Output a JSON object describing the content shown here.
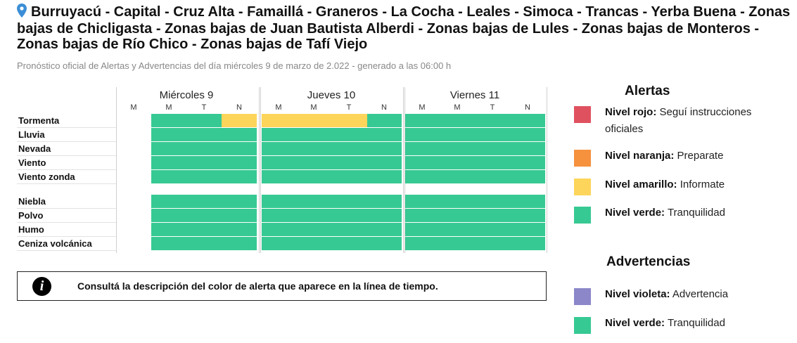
{
  "header": {
    "title": "Burruyacú - Capital - Cruz Alta - Famaillá - Graneros - La Cocha - Leales - Simoca - Trancas - Yerba Buena - Zonas bajas de Chicligasta - Zonas bajas de Juan Bautista Alberdi - Zonas bajas de Lules - Zonas bajas de Monteros - Zonas bajas de Río Chico - Zonas bajas de Tafí Viejo",
    "subtitle": "Pronóstico oficial de Alertas y Advertencias del día miércoles 9 de marzo de 2.022 - generado a las 06:00 h",
    "pin_icon": "location-pin-icon"
  },
  "colors": {
    "green": "#37c994",
    "yellow": "#fdd55a",
    "red": "#e05160",
    "orange": "#f6913e",
    "violet": "#8b87c9"
  },
  "timeline": {
    "days": [
      "Miércoles 9",
      "Jueves 10",
      "Viernes 11"
    ],
    "slot_labels": [
      "M",
      "M",
      "T",
      "N"
    ],
    "alert_rows": [
      {
        "label": "Tormenta",
        "levels": [
          "none",
          "green",
          "green",
          "yellow",
          "yellow",
          "yellow",
          "yellow",
          "green",
          "green",
          "green",
          "green",
          "green"
        ]
      },
      {
        "label": "Lluvia",
        "levels": [
          "none",
          "green",
          "green",
          "green",
          "green",
          "green",
          "green",
          "green",
          "green",
          "green",
          "green",
          "green"
        ]
      },
      {
        "label": "Nevada",
        "levels": [
          "none",
          "green",
          "green",
          "green",
          "green",
          "green",
          "green",
          "green",
          "green",
          "green",
          "green",
          "green"
        ]
      },
      {
        "label": "Viento",
        "levels": [
          "none",
          "green",
          "green",
          "green",
          "green",
          "green",
          "green",
          "green",
          "green",
          "green",
          "green",
          "green"
        ]
      },
      {
        "label": "Viento zonda",
        "levels": [
          "none",
          "green",
          "green",
          "green",
          "green",
          "green",
          "green",
          "green",
          "green",
          "green",
          "green",
          "green"
        ]
      }
    ],
    "warning_rows": [
      {
        "label": "Niebla",
        "levels": [
          "none",
          "green",
          "green",
          "green",
          "green",
          "green",
          "green",
          "green",
          "green",
          "green",
          "green",
          "green"
        ]
      },
      {
        "label": "Polvo",
        "levels": [
          "none",
          "green",
          "green",
          "green",
          "green",
          "green",
          "green",
          "green",
          "green",
          "green",
          "green",
          "green"
        ]
      },
      {
        "label": "Humo",
        "levels": [
          "none",
          "green",
          "green",
          "green",
          "green",
          "green",
          "green",
          "green",
          "green",
          "green",
          "green",
          "green"
        ]
      },
      {
        "label": "Ceniza volcánica",
        "levels": [
          "none",
          "green",
          "green",
          "green",
          "green",
          "green",
          "green",
          "green",
          "green",
          "green",
          "green",
          "green"
        ]
      }
    ]
  },
  "info": {
    "icon": "info-icon",
    "glyph": "i",
    "text": "Consultá la descripción del color de alerta que aparece en la línea de tiempo."
  },
  "legend": {
    "alerts_title": "Alertas",
    "alerts": [
      {
        "level": "Nivel rojo:",
        "desc": "Seguí instrucciones oficiales",
        "color": "red"
      },
      {
        "level": "Nivel naranja:",
        "desc": "Preparate",
        "color": "orange"
      },
      {
        "level": "Nivel amarillo:",
        "desc": "Informate",
        "color": "yellow"
      },
      {
        "level": "Nivel verde:",
        "desc": "Tranquilidad",
        "color": "green"
      }
    ],
    "warnings_title": "Advertencias",
    "warnings": [
      {
        "level": "Nivel violeta:",
        "desc": "Advertencia",
        "color": "violet"
      },
      {
        "level": "Nivel verde:",
        "desc": "Tranquilidad",
        "color": "green"
      }
    ]
  }
}
